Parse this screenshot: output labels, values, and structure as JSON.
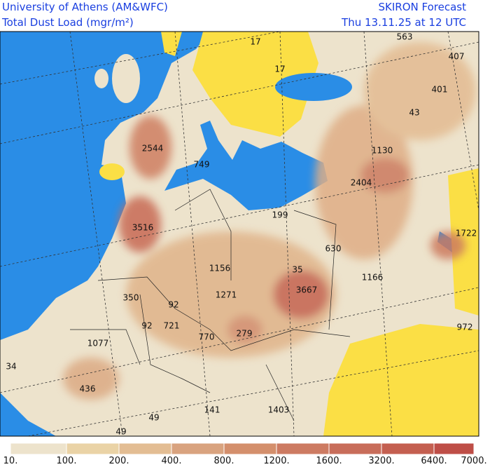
{
  "header": {
    "institution": "University of Athens (AM&WFC)",
    "field": "Total Dust Load (mgr/m²)",
    "model": "SKIRON Forecast",
    "valid_time": "Thu 13.11.25 at 12 UTC"
  },
  "map_labels": [
    "563",
    "407",
    "401",
    "17",
    "17",
    "43",
    "2544",
    "749",
    "1130",
    "2404",
    "199",
    "1722",
    "3516",
    "630",
    "35",
    "1156",
    "1166",
    "3667",
    "350",
    "1271",
    "92",
    "92",
    "721",
    "770",
    "279",
    "972",
    "1077",
    "34",
    "436",
    "141",
    "1403",
    "49",
    "49"
  ],
  "colorbar_labels": [
    "10.",
    "100.",
    "200.",
    "400.",
    "800.",
    "1200.",
    "1600.",
    "3200.",
    "6400.",
    "7000."
  ]
}
